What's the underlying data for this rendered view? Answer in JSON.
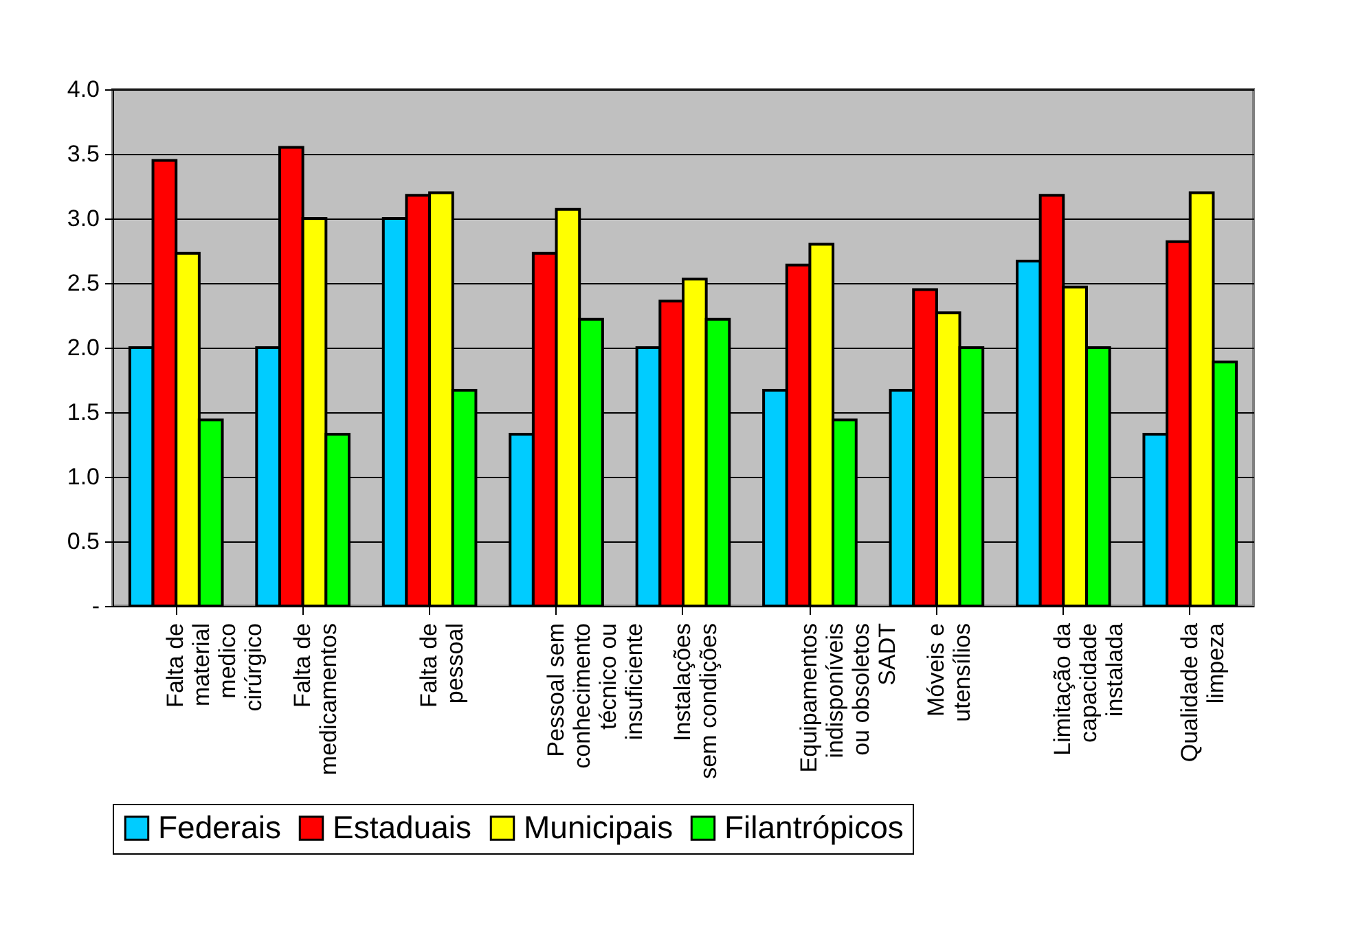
{
  "chart_data": {
    "type": "bar",
    "categories": [
      "Falta de material medico cirúrgico",
      "Falta de medicamentos",
      "Falta de pessoal",
      "Pessoal sem conhecimento técnico ou insuficiente",
      "Instalações sem condições",
      "Equipamentos indisponíveis ou obsoletos SADT",
      "Móveis e utensílios",
      "Limitação da capacidade instalada",
      "Qualidade da limpeza"
    ],
    "series": [
      {
        "name": "Federais",
        "color": "#00ccff",
        "values": [
          2.0,
          2.0,
          3.0,
          1.33,
          2.0,
          1.67,
          1.67,
          2.67,
          1.33
        ]
      },
      {
        "name": "Estaduais",
        "color": "#ff0000",
        "values": [
          3.45,
          3.55,
          3.18,
          2.73,
          2.36,
          2.64,
          2.45,
          3.18,
          2.82
        ]
      },
      {
        "name": "Municipais",
        "color": "#ffff00",
        "values": [
          2.73,
          3.0,
          3.2,
          3.07,
          2.53,
          2.8,
          2.27,
          2.47,
          3.2
        ]
      },
      {
        "name": "Filantrópicos",
        "color": "#00ff00",
        "values": [
          1.44,
          1.33,
          1.67,
          2.22,
          2.22,
          1.44,
          2.0,
          2.0,
          1.89
        ]
      }
    ],
    "ylim": [
      0,
      4
    ],
    "yticks": [
      {
        "value": 0,
        "label": "-"
      },
      {
        "value": 0.5,
        "label": "0.5"
      },
      {
        "value": 1,
        "label": "1.0"
      },
      {
        "value": 1.5,
        "label": "1.5"
      },
      {
        "value": 2,
        "label": "2.0"
      },
      {
        "value": 2.5,
        "label": "2.5"
      },
      {
        "value": 3,
        "label": "3.0"
      },
      {
        "value": 3.5,
        "label": "3.5"
      },
      {
        "value": 4,
        "label": "4.0"
      }
    ],
    "grid": "y",
    "legend": "bottom"
  }
}
